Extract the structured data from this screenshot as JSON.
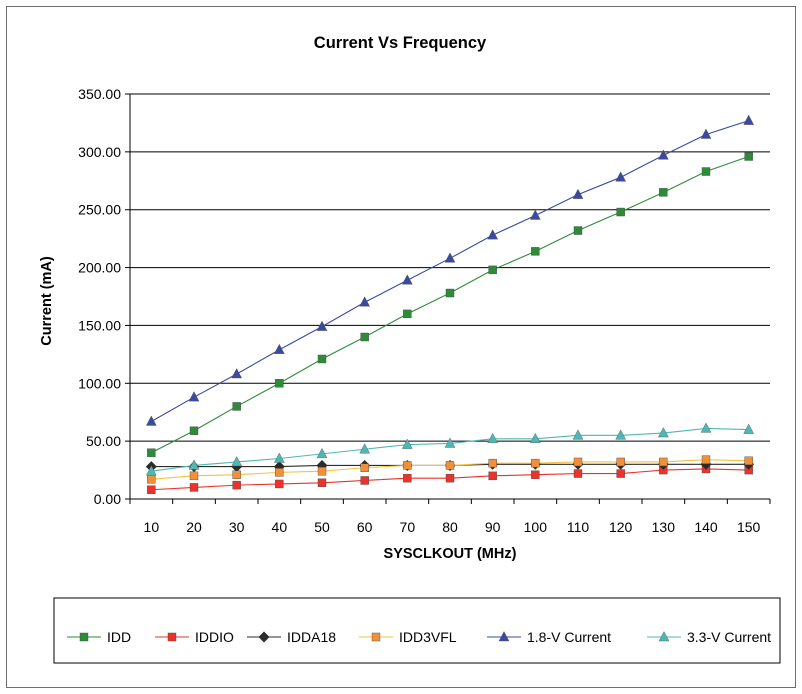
{
  "chart_data": {
    "type": "line",
    "title": "Current Vs Frequency",
    "xlabel": "SYSCLKOUT (MHz)",
    "ylabel": "Current (mA)",
    "ylim": [
      0,
      350
    ],
    "yticks": [
      "0.00",
      "50.00",
      "100.00",
      "150.00",
      "200.00",
      "250.00",
      "300.00",
      "350.00"
    ],
    "ytick_values": [
      0,
      50,
      100,
      150,
      200,
      250,
      300,
      350
    ],
    "x": [
      10,
      20,
      30,
      40,
      50,
      60,
      70,
      80,
      90,
      100,
      110,
      120,
      130,
      140,
      150
    ],
    "xtick_labels": [
      "10",
      "20",
      "30",
      "40",
      "50",
      "60",
      "70",
      "80",
      "90",
      "100",
      "110",
      "120",
      "130",
      "140",
      "150"
    ],
    "grid": "horizontal",
    "legend_position": "bottom",
    "series": [
      {
        "name": "IDD",
        "color": "#2e8b3a",
        "marker": "square",
        "values": [
          40,
          59,
          80,
          100,
          121,
          140,
          160,
          178,
          198,
          214,
          232,
          248,
          265,
          283,
          296
        ]
      },
      {
        "name": "IDDIO",
        "color": "#e8342c",
        "marker": "square",
        "values": [
          8,
          10,
          12,
          13,
          14,
          16,
          18,
          18,
          20,
          21,
          22,
          22,
          25,
          26,
          25
        ]
      },
      {
        "name": "IDDA18",
        "color": "#2b2b2b",
        "marker": "diamond",
        "values": [
          28,
          28,
          28,
          28,
          29,
          29,
          29,
          29,
          30,
          30,
          30,
          30,
          30,
          30,
          30
        ]
      },
      {
        "name": "IDD3VFL",
        "color": "#f5c242",
        "marker": "square",
        "markerColor": "#f0913a",
        "values": [
          17,
          20,
          21,
          23,
          24,
          27,
          29,
          29,
          31,
          31,
          32,
          32,
          32,
          34,
          33
        ]
      },
      {
        "name": "1.8-V Current",
        "color": "#3a4aa0",
        "marker": "triangle",
        "values": [
          67,
          88,
          108,
          129,
          149,
          170,
          189,
          208,
          228,
          245,
          263,
          278,
          297,
          315,
          327
        ]
      },
      {
        "name": "3.3-V Current",
        "color": "#4fb7b3",
        "marker": "triangle",
        "values": [
          24,
          29,
          32,
          35,
          39,
          43,
          47,
          48,
          52,
          52,
          55,
          55,
          57,
          61,
          60
        ]
      }
    ]
  }
}
